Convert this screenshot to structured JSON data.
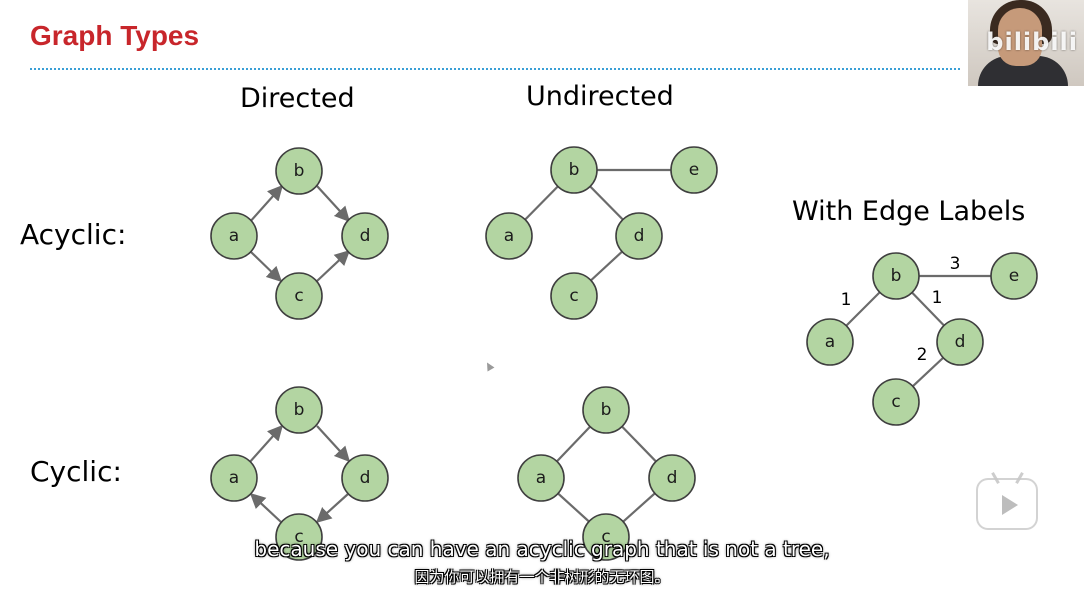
{
  "slide": {
    "title": "Graph Types",
    "col_directed": "Directed",
    "col_undirected": "Undirected",
    "row_acyclic": "Acyclic:",
    "row_cyclic": "Cyclic:",
    "edge_labels_heading": "With Edge Labels"
  },
  "graphs": {
    "directed_acyclic": {
      "nodes": [
        "a",
        "b",
        "c",
        "d"
      ]
    },
    "undirected_acyclic": {
      "nodes": [
        "a",
        "b",
        "c",
        "d",
        "e"
      ]
    },
    "edge_labeled": {
      "nodes": [
        "a",
        "b",
        "c",
        "d",
        "e"
      ],
      "weights": {
        "b_e": "3",
        "b_a": "1",
        "b_d": "1",
        "d_c": "2"
      }
    },
    "directed_cyclic": {
      "nodes": [
        "a",
        "b",
        "c",
        "d"
      ]
    },
    "undirected_cyclic": {
      "nodes": [
        "a",
        "b",
        "c",
        "d"
      ]
    }
  },
  "overlay": {
    "watermark": "bilibili",
    "subtitle_en": "because you can have an acyclic graph that is not a tree,",
    "subtitle_zh": "因为你可以拥有一个非树形的无环图。"
  },
  "colors": {
    "title": "#c8262b",
    "node_fill": "#b3d5a2",
    "divider": "#3a9fd6"
  },
  "icons": {
    "play": "play-button-icon",
    "cursor": "mouse-cursor-icon"
  }
}
